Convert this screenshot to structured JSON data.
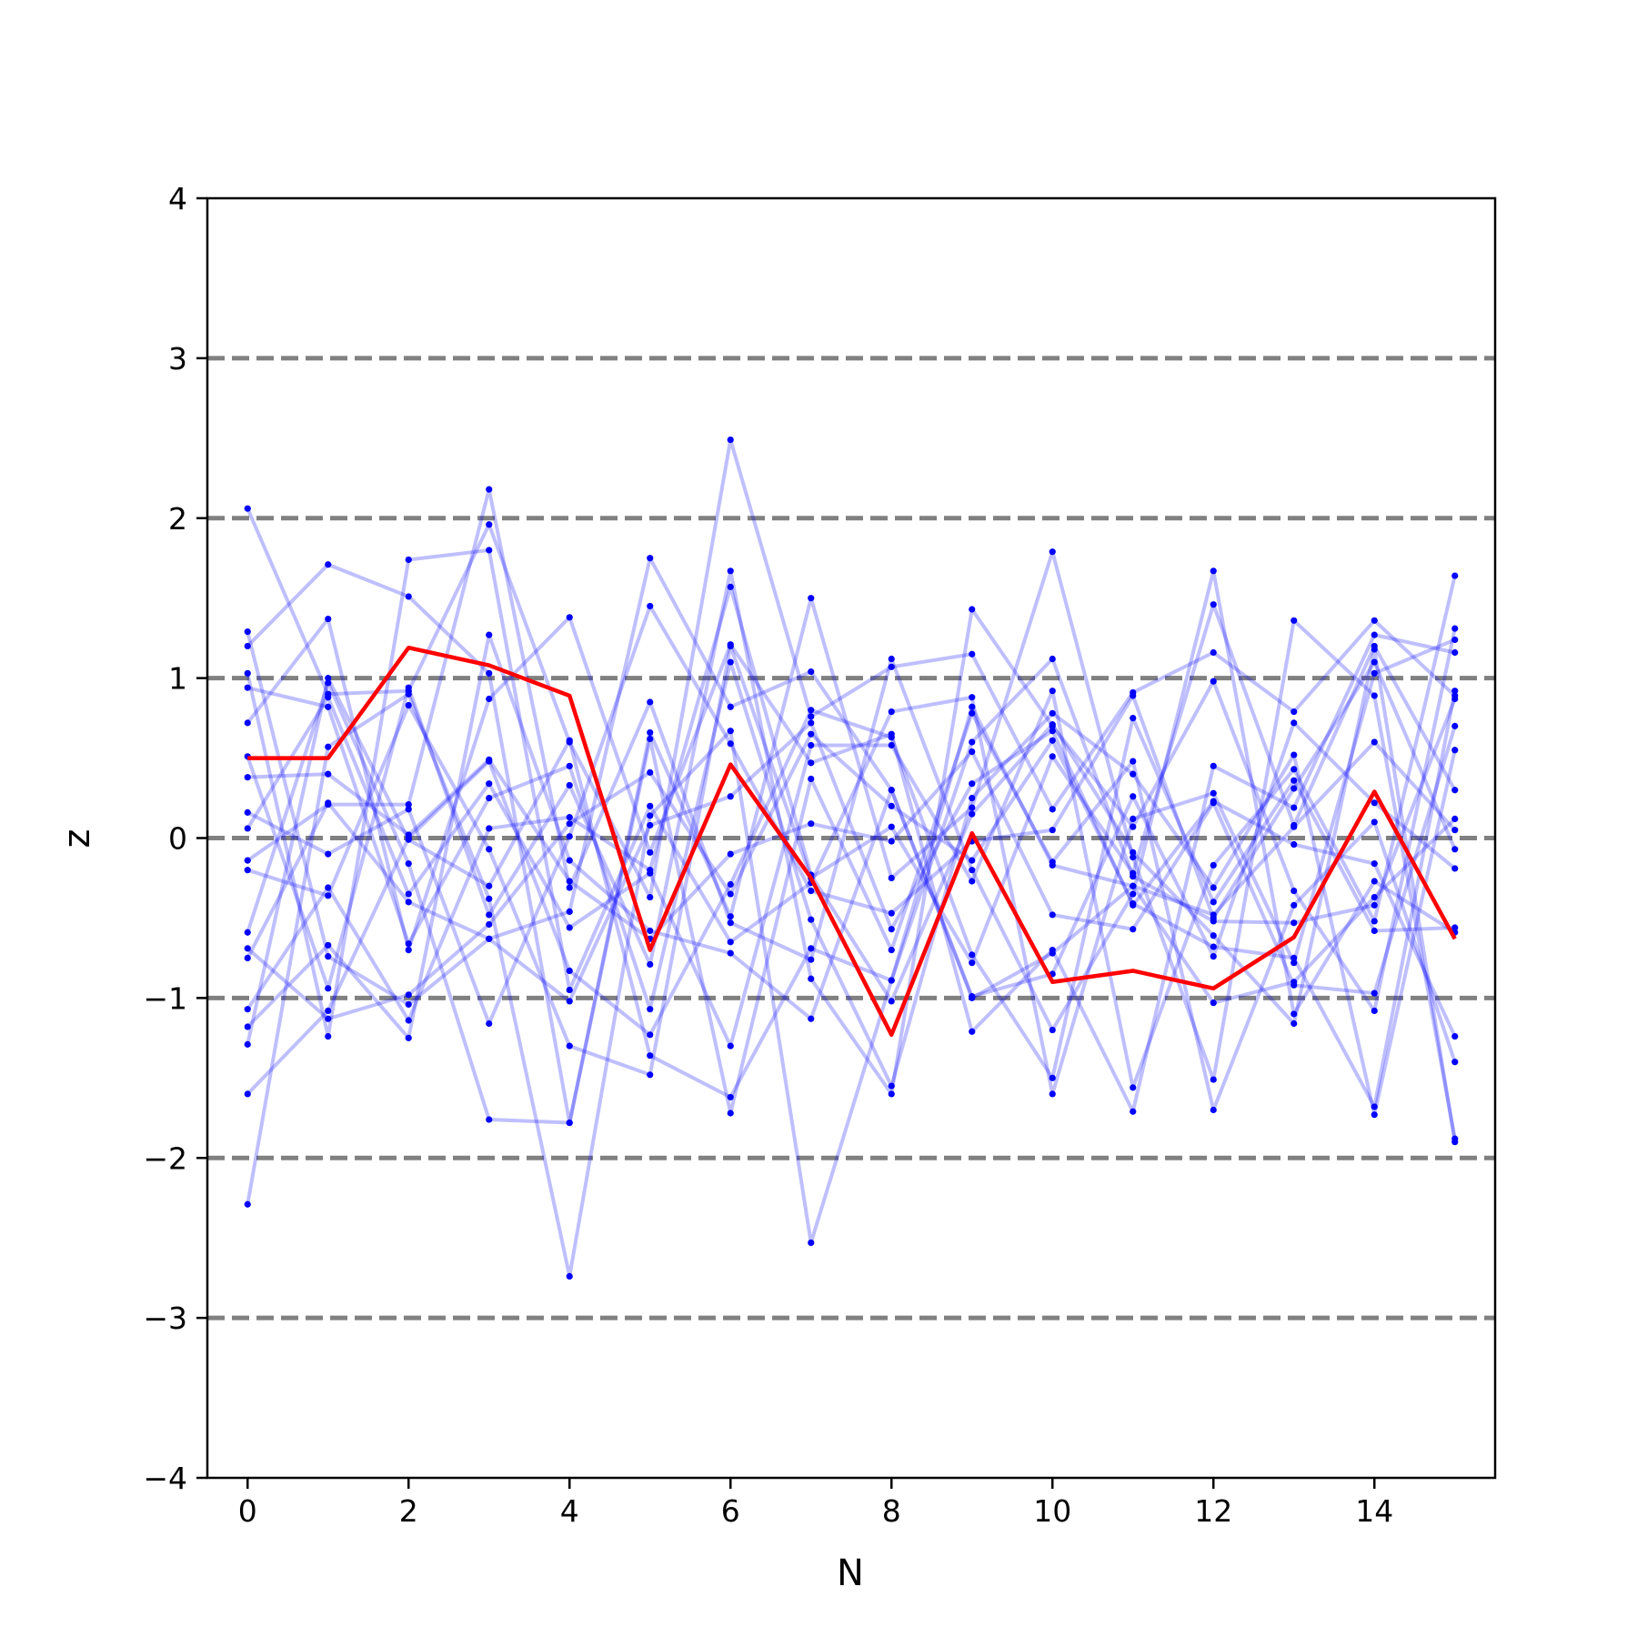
{
  "chart_data": {
    "type": "line",
    "title": "",
    "xlabel": "N",
    "ylabel": "z",
    "xlim": [
      -0.5,
      15.5
    ],
    "ylim": [
      -4,
      4
    ],
    "xticks": [
      0,
      2,
      4,
      6,
      8,
      10,
      12,
      14
    ],
    "yticks": [
      -4,
      -3,
      -2,
      -1,
      0,
      1,
      2,
      3,
      4
    ],
    "ytick_labels": [
      "−4",
      "−3",
      "−2",
      "−1",
      "0",
      "1",
      "2",
      "3",
      "4"
    ],
    "reference_lines": [
      -3,
      -2,
      -1,
      0,
      1,
      2,
      3
    ],
    "grid": false,
    "legend": "none",
    "x": [
      0,
      1,
      2,
      3,
      4,
      5,
      6,
      7,
      8,
      9,
      10,
      11,
      12,
      13,
      14,
      15
    ],
    "highlight_series": {
      "color": "#ff0000",
      "values": [
        0.5,
        0.5,
        1.19,
        1.08,
        0.89,
        -0.7,
        0.46,
        -0.25,
        -1.23,
        0.03,
        -0.9,
        -0.83,
        -0.94,
        -0.62,
        0.29,
        -0.63
      ]
    },
    "background_series_color": "#0000ff",
    "background_series": [
      [
        2.06,
        0.9,
        0.92,
        1.96,
        0.6,
        -0.37,
        2.49,
        0.76,
        1.07,
        1.15,
        0.18,
        0.91,
        1.16,
        0.79,
        1.36,
        0.89
      ],
      [
        1.29,
        -0.74,
        -1.04,
        -0.63,
        -0.46,
        1.75,
        0.82,
        1.04,
        0.3,
        -1.0,
        -0.72,
        -0.3,
        -0.48,
        0.07,
        0.6,
        0.05
      ],
      [
        1.2,
        1.71,
        1.51,
        1.03,
        -1.78,
        0.66,
        -0.49,
        1.5,
        -0.25,
        0.19,
        1.79,
        -0.12,
        -1.51,
        1.36,
        0.89,
        -1.88
      ],
      [
        1.03,
        -1.24,
        1.74,
        1.8,
        -0.95,
        0.2,
        -0.65,
        -0.28,
        0.79,
        0.88,
        -1.6,
        0.12,
        0.28,
        -0.78,
        1.03,
        1.24
      ],
      [
        0.94,
        0.82,
        -0.66,
        0.25,
        0.45,
        -1.07,
        1.1,
        -0.51,
        -1.55,
        0.25,
        0.78,
        0.4,
        -0.31,
        0.52,
        -1.73,
        0.55
      ],
      [
        0.72,
        1.37,
        -0.7,
        0.87,
        1.38,
        -0.09,
        1.21,
        0.47,
        0.65,
        -1.21,
        -0.7,
        -1.71,
        0.45,
        0.19,
        1.27,
        1.16
      ],
      [
        0.51,
        -0.94,
        0.94,
        -0.48,
        0.33,
        -0.79,
        1.67,
        -0.88,
        -1.6,
        1.43,
        0.7,
        0.07,
        0.98,
        -0.33,
        -1.08,
        1.31
      ],
      [
        0.38,
        0.4,
        0.02,
        0.49,
        -0.27,
        -0.63,
        -0.1,
        0.09,
        -0.02,
        0.54,
        -0.48,
        -0.57,
        0.22,
        -0.92,
        -0.97,
        0.7
      ],
      [
        0.16,
        -0.1,
        0.18,
        -1.16,
        0.01,
        1.45,
        0.59,
        -0.33,
        -0.47,
        -0.02,
        0.05,
        0.89,
        -0.5,
        0.31,
        1.1,
        -0.07
      ],
      [
        0.06,
        0.88,
        -0.35,
        0.34,
        -0.56,
        -0.22,
        -1.3,
        0.58,
        0.58,
        -0.27,
        0.92,
        -1.56,
        -0.17,
        0.43,
        -0.52,
        1.64
      ],
      [
        -0.14,
        0.21,
        0.21,
        2.18,
        -0.31,
        0.85,
        -0.53,
        -0.76,
        1.12,
        -0.2,
        -1.2,
        -0.35,
        1.67,
        -1.1,
        -0.27,
        -0.59
      ],
      [
        -0.2,
        -0.36,
        0.83,
        -0.07,
        -1.3,
        -1.48,
        1.2,
        -0.25,
        0.07,
        -0.78,
        0.51,
        -0.22,
        1.46,
        0.08,
        1.2,
        0.3
      ],
      [
        -0.59,
        0.97,
        -0.16,
        -1.76,
        -1.78,
        0.62,
        -1.72,
        0.37,
        -0.7,
        0.78,
        -0.15,
        0.48,
        -1.7,
        -0.42,
        0.1,
        -1.4
      ],
      [
        -0.69,
        -1.13,
        -0.98,
        -0.54,
        0.09,
        0.41,
        -0.35,
        0.65,
        0.2,
        -0.14,
        0.61,
        -0.41,
        -0.68,
        -0.75,
        -1.68,
        0.92
      ],
      [
        -0.75,
        0.22,
        -0.4,
        -0.63,
        -1.02,
        0.08,
        0.26,
        0.72,
        -0.57,
        0.34,
        0.67,
        -0.42,
        0.23,
        -0.04,
        -0.16,
        -1.24
      ],
      [
        -1.07,
        -0.31,
        -1.14,
        0.06,
        0.13,
        -0.2,
        1.57,
        -0.23,
        -1.02,
        0.15,
        0.71,
        -0.09,
        -0.61,
        -1.16,
        1.18,
        -1.9
      ],
      [
        -1.18,
        -0.67,
        -1.25,
        1.27,
        -0.14,
        -0.58,
        -0.72,
        -1.13,
        0.3,
        -0.99,
        -0.85,
        0.26,
        -0.74,
        0.72,
        0.22,
        -0.19
      ],
      [
        -1.29,
        1.0,
        -0.01,
        -0.3,
        0.61,
        -1.36,
        -1.62,
        -0.69,
        -0.89,
        0.6,
        1.12,
        -0.24,
        -0.52,
        -0.53,
        -0.42,
        0.87
      ],
      [
        -1.6,
        -1.08,
        0.0,
        0.48,
        -0.83,
        -1.23,
        -0.29,
        0.8,
        0.63,
        -0.73,
        -1.5,
        0.75,
        -0.4,
        0.36,
        -0.58,
        -0.56
      ],
      [
        -2.29,
        0.57,
        0.9,
        -0.38,
        -2.74,
        0.14,
        0.67,
        -2.53,
        -0.89,
        0.82,
        -0.17,
        -0.3,
        -1.03,
        -0.9,
        -0.37,
        0.12
      ]
    ]
  }
}
